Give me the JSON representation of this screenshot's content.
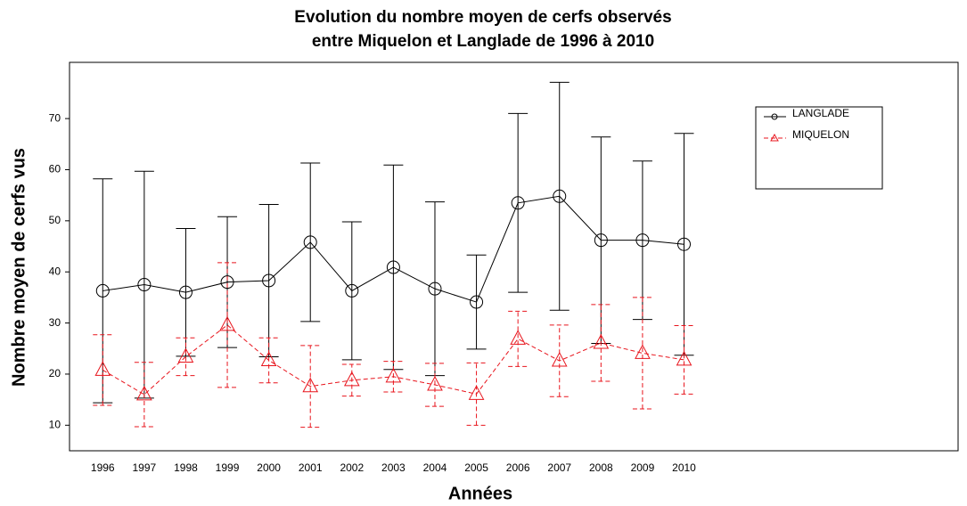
{
  "chart_data": {
    "type": "line",
    "title": [
      "Evolution du nombre moyen de cerfs observés",
      "entre Miquelon et Langlade de 1996 à 2010"
    ],
    "xlabel": "Années",
    "ylabel": "Nombre  moyen de cerfs vus",
    "x": [
      1996,
      1997,
      1998,
      1999,
      2000,
      2001,
      2002,
      2003,
      2004,
      2005,
      2006,
      2007,
      2008,
      2009,
      2010
    ],
    "xlim": [
      1995.2,
      2016.6
    ],
    "xticks": [
      1996,
      1997,
      1998,
      1999,
      2000,
      2001,
      2002,
      2003,
      2004,
      2005,
      2006,
      2007,
      2008,
      2009,
      2010
    ],
    "ylim": [
      5,
      81
    ],
    "yticks": [
      10,
      20,
      30,
      40,
      50,
      60,
      70
    ],
    "legend": "upper right",
    "series": [
      {
        "name": "LANGLADE",
        "color": "#000000",
        "marker": "circle",
        "dashed": false,
        "values": [
          36.3,
          37.5,
          36,
          38,
          38.3,
          45.8,
          36.3,
          40.9,
          36.7,
          34.1,
          53.5,
          54.8,
          46.2,
          46.2,
          45.4
        ],
        "errors": [
          21.9,
          22.2,
          12.5,
          12.8,
          14.9,
          15.5,
          13.5,
          20,
          17,
          9.2,
          17.5,
          22.3,
          20.2,
          15.5,
          21.7
        ]
      },
      {
        "name": "MIQUELON",
        "color": "#e8141c",
        "marker": "triangle",
        "dashed": true,
        "values": [
          20.8,
          16,
          23.4,
          29.6,
          22.7,
          17.6,
          18.8,
          19.5,
          17.9,
          16.1,
          26.9,
          22.6,
          26.1,
          24.1,
          22.8
        ],
        "errors": [
          6.9,
          6.3,
          3.7,
          12.2,
          4.4,
          8,
          3.1,
          3,
          4.2,
          6.1,
          5.4,
          7,
          7.5,
          10.9,
          6.7
        ]
      }
    ]
  }
}
